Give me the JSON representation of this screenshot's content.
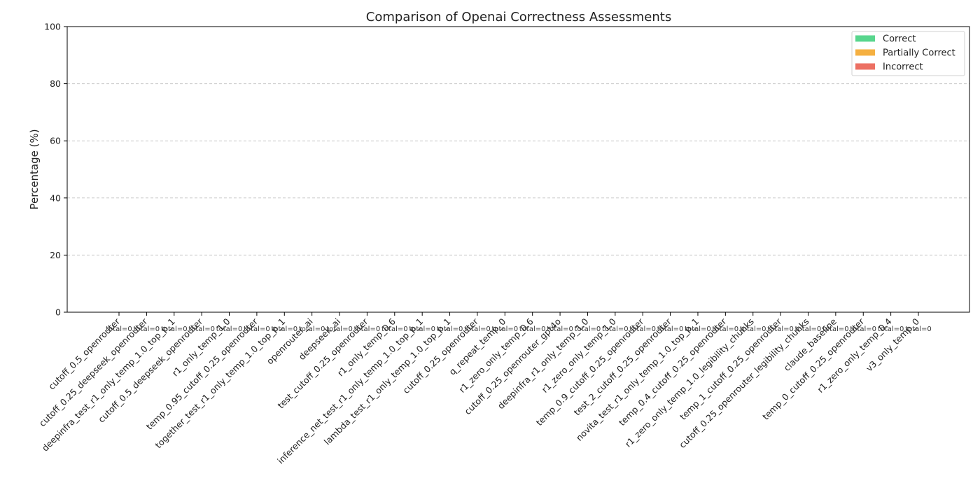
{
  "chart_data": {
    "type": "bar",
    "title": "Comparison of Openai Correctness Assessments",
    "xlabel": "",
    "ylabel": "Percentage (%)",
    "ylim": [
      0,
      100
    ],
    "yticks": [
      0,
      20,
      40,
      60,
      80,
      100
    ],
    "grid": true,
    "legend_position": "top-right",
    "categories": [
      "cutoff_0.5_openrouter",
      "cutoff_0.25_deepseek_openrouter",
      "deepinfra_test_r1_only_temp_1.0_top_p_1",
      "cutoff_0.5_deepseek_openrouter",
      "r1_only_temp_1.0",
      "temp_0.95_cutoff_0.25_openrouter",
      "together_test_r1_only_temp_1.0_top_p_1",
      "openrouter_ai",
      "deepseek_ai",
      "test_cutoff_0.25_openrouter",
      "r1_only_temp_0.6",
      "inference_net_test_r1_only_temp_1.0_top_p_1",
      "lambda_test_r1_only_temp_1.0_top_p_1",
      "cutoff_0.25_openrouter",
      "q_repeat_temp_0",
      "r1_zero_only_temp_0.6",
      "cutoff_0.25_openrouter_gpt4o",
      "deepinfra_r1_only_temp_1.0",
      "r1_zero_only_temp_1.0",
      "temp_0.9_cutoff_0.25_openrouter",
      "test_2_cutoff_0.25_openrouter",
      "novita_test_r1_only_temp_1.0_top_p_1",
      "temp_0.4_cutoff_0.25_openrouter",
      "r1_zero_only_temp_1.0_legibility_chunks",
      "temp_1_cutoff_0.25_openrouter",
      "cutoff_0.25_openrouter_legibility_chunks",
      "claude_baseline",
      "temp_0_cutoff_0.25_openrouter",
      "r1_zero_only_temp_0.4",
      "v3_only_temp_0"
    ],
    "series": [
      {
        "name": "Correct",
        "color": "#58d68d",
        "values": [
          0,
          0,
          0,
          0,
          0,
          0,
          0,
          0,
          0,
          0,
          0,
          0,
          0,
          0,
          0,
          0,
          0,
          0,
          0,
          0,
          0,
          0,
          0,
          0,
          0,
          0,
          0,
          0,
          0,
          0
        ]
      },
      {
        "name": "Partially Correct",
        "color": "#f5b041",
        "values": [
          0,
          0,
          0,
          0,
          0,
          0,
          0,
          0,
          0,
          0,
          0,
          0,
          0,
          0,
          0,
          0,
          0,
          0,
          0,
          0,
          0,
          0,
          0,
          0,
          0,
          0,
          0,
          0,
          0,
          0
        ]
      },
      {
        "name": "Incorrect",
        "color": "#ec7063",
        "values": [
          0,
          0,
          0,
          0,
          0,
          0,
          0,
          0,
          0,
          0,
          0,
          0,
          0,
          0,
          0,
          0,
          0,
          0,
          0,
          0,
          0,
          0,
          0,
          0,
          0,
          0,
          0,
          0,
          0,
          0
        ]
      }
    ],
    "annotations": [
      "total=0",
      "total=0",
      "total=0",
      "total=0",
      "total=0",
      "total=0",
      "total=0",
      "total=0",
      "total=0",
      "total=0",
      "total=0",
      "total=0",
      "total=0",
      "total=0",
      "total=0",
      "total=0",
      "total=0",
      "total=0",
      "total=0",
      "total=0",
      "total=0",
      "total=0",
      "total=0",
      "total=0",
      "total=0",
      "total=0",
      "total=0",
      "total=0",
      "total=0",
      "total=0"
    ]
  }
}
